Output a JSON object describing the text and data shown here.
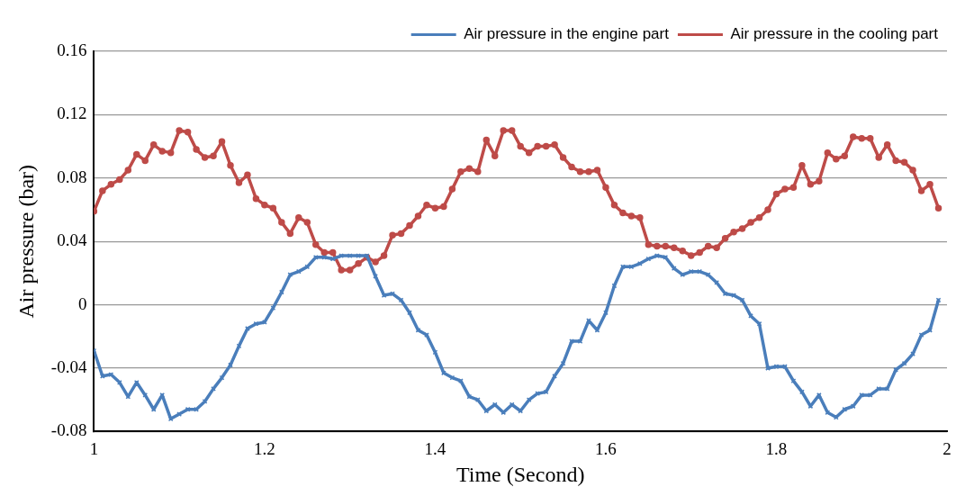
{
  "chart_data": {
    "type": "line",
    "xlabel": "Time (Second)",
    "ylabel": "Air pressure (bar)",
    "x": [
      1.0,
      1.01,
      1.02,
      1.03,
      1.04,
      1.05,
      1.06,
      1.07,
      1.08,
      1.09,
      1.1,
      1.11,
      1.12,
      1.13,
      1.14,
      1.15,
      1.16,
      1.17,
      1.18,
      1.19,
      1.2,
      1.21,
      1.22,
      1.23,
      1.24,
      1.25,
      1.26,
      1.27,
      1.28,
      1.29,
      1.3,
      1.31,
      1.32,
      1.33,
      1.34,
      1.35,
      1.36,
      1.37,
      1.38,
      1.39,
      1.4,
      1.41,
      1.42,
      1.43,
      1.44,
      1.45,
      1.46,
      1.47,
      1.48,
      1.49,
      1.5,
      1.51,
      1.52,
      1.53,
      1.54,
      1.55,
      1.56,
      1.57,
      1.58,
      1.59,
      1.6,
      1.61,
      1.62,
      1.63,
      1.64,
      1.65,
      1.66,
      1.67,
      1.68,
      1.69,
      1.7,
      1.71,
      1.72,
      1.73,
      1.74,
      1.75,
      1.76,
      1.77,
      1.78,
      1.79,
      1.8,
      1.81,
      1.82,
      1.83,
      1.84,
      1.85,
      1.86,
      1.87,
      1.88,
      1.89,
      1.9,
      1.91,
      1.92,
      1.93,
      1.94,
      1.95,
      1.96,
      1.97,
      1.98,
      1.99
    ],
    "series": [
      {
        "name": "Air pressure in the engine part",
        "color": "#4a7ebb",
        "marker": "cross",
        "values": [
          -0.029,
          -0.045,
          -0.044,
          -0.049,
          -0.058,
          -0.049,
          -0.057,
          -0.066,
          -0.057,
          -0.072,
          -0.069,
          -0.066,
          -0.066,
          -0.061,
          -0.053,
          -0.046,
          -0.038,
          -0.026,
          -0.015,
          -0.012,
          -0.011,
          -0.002,
          0.008,
          0.019,
          0.021,
          0.024,
          0.03,
          0.03,
          0.029,
          0.031,
          0.031,
          0.031,
          0.031,
          0.018,
          0.006,
          0.007,
          0.003,
          -0.005,
          -0.016,
          -0.019,
          -0.03,
          -0.043,
          -0.046,
          -0.048,
          -0.058,
          -0.06,
          -0.067,
          -0.063,
          -0.068,
          -0.063,
          -0.067,
          -0.06,
          -0.056,
          -0.055,
          -0.045,
          -0.037,
          -0.023,
          -0.023,
          -0.01,
          -0.016,
          -0.005,
          0.012,
          0.024,
          0.024,
          0.026,
          0.029,
          0.031,
          0.03,
          0.023,
          0.019,
          0.021,
          0.021,
          0.019,
          0.014,
          0.007,
          0.006,
          0.003,
          -0.007,
          -0.012,
          -0.04,
          -0.039,
          -0.039,
          -0.048,
          -0.055,
          -0.064,
          -0.057,
          -0.068,
          -0.071,
          -0.066,
          -0.064,
          -0.057,
          -0.057,
          -0.053,
          -0.053,
          -0.041,
          -0.037,
          -0.031,
          -0.019,
          -0.016,
          0.003
        ]
      },
      {
        "name": "Air pressure in the cooling part",
        "color": "#be4b48",
        "marker": "circle",
        "values": [
          0.059,
          0.072,
          0.076,
          0.079,
          0.085,
          0.095,
          0.091,
          0.101,
          0.097,
          0.096,
          0.11,
          0.109,
          0.098,
          0.093,
          0.094,
          0.103,
          0.088,
          0.077,
          0.082,
          0.067,
          0.063,
          0.061,
          0.052,
          0.045,
          0.055,
          0.052,
          0.038,
          0.033,
          0.033,
          0.022,
          0.022,
          0.026,
          0.03,
          0.027,
          0.031,
          0.044,
          0.045,
          0.05,
          0.056,
          0.063,
          0.061,
          0.062,
          0.073,
          0.084,
          0.086,
          0.084,
          0.104,
          0.094,
          0.11,
          0.11,
          0.1,
          0.096,
          0.1,
          0.1,
          0.101,
          0.093,
          0.087,
          0.084,
          0.084,
          0.085,
          0.074,
          0.063,
          0.058,
          0.056,
          0.055,
          0.038,
          0.037,
          0.037,
          0.036,
          0.034,
          0.031,
          0.033,
          0.037,
          0.036,
          0.042,
          0.046,
          0.048,
          0.052,
          0.055,
          0.06,
          0.07,
          0.073,
          0.074,
          0.088,
          0.076,
          0.078,
          0.096,
          0.092,
          0.094,
          0.106,
          0.105,
          0.105,
          0.093,
          0.101,
          0.091,
          0.09,
          0.085,
          0.072,
          0.076,
          0.061
        ]
      }
    ],
    "xlim": [
      1,
      2
    ],
    "xticks": [
      1,
      1.2,
      1.4,
      1.6,
      1.8,
      2
    ],
    "ylim": [
      -0.08,
      0.16
    ],
    "yticks": [
      -0.08,
      -0.04,
      0,
      0.04,
      0.08,
      0.12,
      0.16
    ],
    "grid": "y",
    "legend": "top right",
    "line_style": "solid"
  }
}
